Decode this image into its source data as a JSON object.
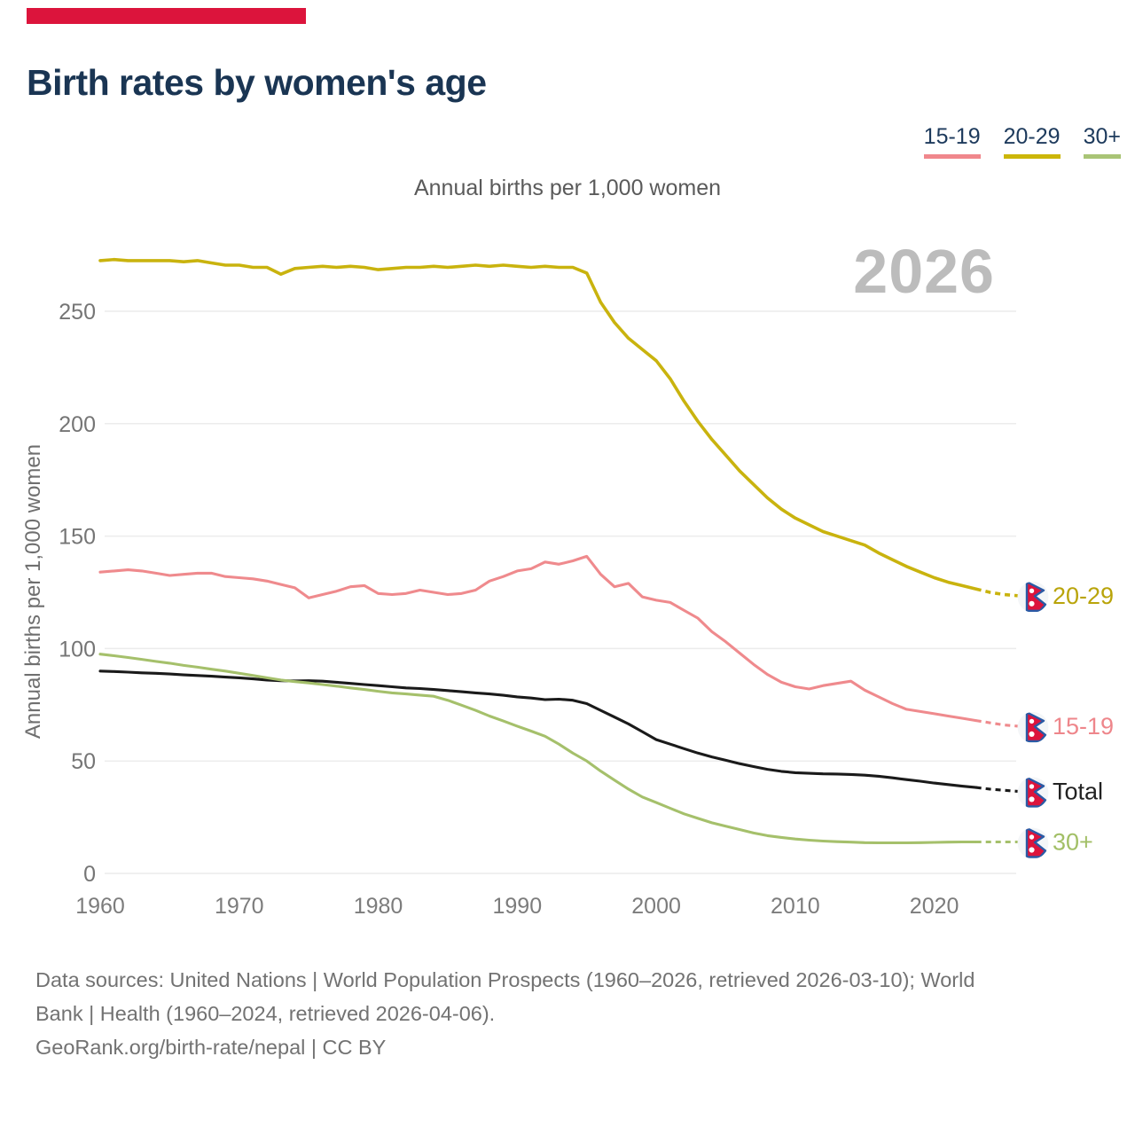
{
  "accent_bar_color": "#dc143c",
  "header": {
    "title": "Birth rates by women's age"
  },
  "legend": {
    "items": [
      {
        "label": "15-19",
        "color": "#f0878c"
      },
      {
        "label": "20-29",
        "color": "#ccb609"
      },
      {
        "label": "30+",
        "color": "#a9c476"
      }
    ]
  },
  "subtitle": "Annual births per 1,000 women",
  "watermark": "2026",
  "chart_data": {
    "type": "line",
    "title": "Birth rates by women's age",
    "subtitle": "Annual births per 1,000 women",
    "ylabel": "Annual births per 1,000 women",
    "ylim": [
      0,
      283
    ],
    "yticks": [
      0,
      50,
      100,
      150,
      200,
      250
    ],
    "xticks": [
      1960,
      1970,
      1980,
      1990,
      2000,
      2010,
      2020
    ],
    "grid": true,
    "legend_position": "top-right",
    "projection_from": 2023,
    "flag_icon": "nepal-flag-icon",
    "x": [
      1960,
      1961,
      1962,
      1963,
      1964,
      1965,
      1966,
      1967,
      1968,
      1969,
      1970,
      1971,
      1972,
      1973,
      1974,
      1975,
      1976,
      1977,
      1978,
      1979,
      1980,
      1981,
      1982,
      1983,
      1984,
      1985,
      1986,
      1987,
      1988,
      1989,
      1990,
      1991,
      1992,
      1993,
      1994,
      1995,
      1996,
      1997,
      1998,
      1999,
      2000,
      2001,
      2002,
      2003,
      2004,
      2005,
      2006,
      2007,
      2008,
      2009,
      2010,
      2011,
      2012,
      2013,
      2014,
      2015,
      2016,
      2017,
      2018,
      2019,
      2020,
      2021,
      2022,
      2023,
      2024,
      2025,
      2026
    ],
    "series": [
      {
        "name": "20-29",
        "color": "#c9b30e",
        "label_color": "#b9a40a",
        "end_label": "20-29",
        "values": [
          272.5,
          273,
          272.5,
          272.5,
          272.5,
          272.5,
          272,
          272.5,
          271.5,
          270.5,
          270.5,
          269.5,
          269.5,
          266.5,
          269,
          269.5,
          270,
          269.5,
          270,
          269.5,
          268.5,
          269,
          269.5,
          269.5,
          270,
          269.5,
          270,
          270.5,
          270,
          270.5,
          270,
          269.5,
          270,
          269.5,
          269.5,
          267,
          254,
          245,
          238,
          233,
          228,
          220,
          210,
          201,
          193,
          186,
          179,
          173,
          167,
          162,
          158,
          155,
          152,
          150,
          148,
          146,
          142.5,
          139.5,
          136.5,
          134,
          131.5,
          129.5,
          128,
          126.5,
          125,
          124,
          123.5
        ]
      },
      {
        "name": "15-19",
        "color": "#ef8a8d",
        "label_color": "#ee868b",
        "end_label": "15-19",
        "values": [
          134,
          134.5,
          135,
          134.5,
          133.5,
          132.5,
          133,
          133.5,
          133.5,
          132,
          131.5,
          131,
          130,
          128.5,
          127,
          122.5,
          124,
          125.5,
          127.5,
          128,
          124.5,
          124,
          124.5,
          126,
          125,
          124,
          124.5,
          126,
          130,
          132,
          134.5,
          135.5,
          138.5,
          137.5,
          139,
          141,
          133,
          127.5,
          129,
          123,
          121.5,
          120.5,
          117,
          113.5,
          107.5,
          103,
          98,
          93,
          88.5,
          85,
          83,
          82,
          83.5,
          84.5,
          85.5,
          81.5,
          78.5,
          75.5,
          73,
          72,
          71,
          70,
          69,
          68,
          67,
          66,
          65.5
        ]
      },
      {
        "name": "Total",
        "color": "#1a1a1a",
        "label_color": "#222222",
        "end_label": "Total",
        "values": [
          90,
          89.8,
          89.5,
          89.2,
          89,
          88.7,
          88.3,
          88,
          87.7,
          87.3,
          87,
          86.5,
          86,
          85.7,
          85.6,
          85.7,
          85.5,
          85,
          84.5,
          84,
          83.5,
          83,
          82.5,
          82.2,
          81.8,
          81.3,
          80.8,
          80.3,
          79.8,
          79.2,
          78.5,
          78,
          77.3,
          77.5,
          77,
          75.5,
          72.5,
          69.5,
          66.5,
          63,
          59.5,
          57.5,
          55.5,
          53.5,
          51.8,
          50.3,
          48.8,
          47.5,
          46.3,
          45.4,
          44.8,
          44.5,
          44.3,
          44.2,
          44,
          43.7,
          43.2,
          42.5,
          41.7,
          41,
          40.2,
          39.5,
          38.8,
          38.2,
          37.5,
          37,
          36.5
        ]
      },
      {
        "name": "30+",
        "color": "#a5c06b",
        "label_color": "#a2bf66",
        "end_label": "30+",
        "values": [
          97.5,
          96.8,
          96,
          95.2,
          94.3,
          93.5,
          92.5,
          91.7,
          90.8,
          90,
          89,
          88,
          87,
          86,
          85.3,
          84.7,
          84,
          83.3,
          82.5,
          81.8,
          81,
          80.3,
          79.8,
          79.3,
          78.8,
          77,
          74.8,
          72.5,
          70,
          67.8,
          65.5,
          63.3,
          61,
          57.5,
          53.5,
          50,
          45.5,
          41.5,
          37.5,
          34,
          31.5,
          29,
          26.5,
          24.5,
          22.5,
          21,
          19.5,
          18,
          16.8,
          16,
          15.3,
          14.8,
          14.4,
          14.1,
          13.9,
          13.7,
          13.6,
          13.6,
          13.6,
          13.7,
          13.8,
          13.9,
          14,
          14,
          14,
          14,
          14
        ]
      }
    ]
  },
  "footer": {
    "lines": [
      "Data sources: United Nations | World Population Prospects (1960–2026, retrieved 2026-03-10); World",
      "Bank | Health (1960–2024, retrieved 2026-04-06).",
      "GeoRank.org/birth-rate/nepal | CC BY"
    ]
  }
}
